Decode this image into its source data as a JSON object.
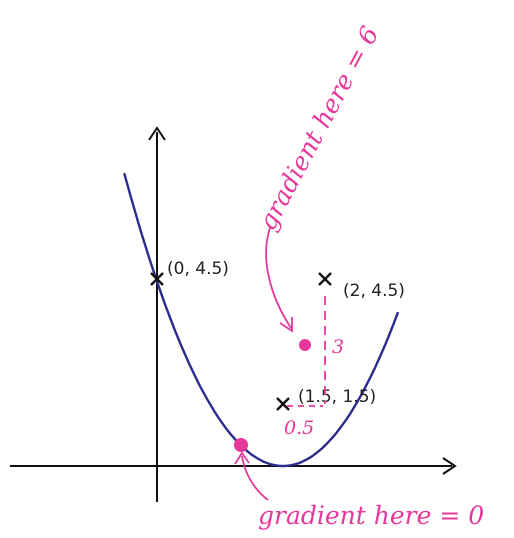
{
  "points": [
    {
      "label": "(0, 4.5)"
    },
    {
      "label": "(2, 4.5)"
    },
    {
      "label": "(1.5, 1.5)"
    }
  ],
  "annotations": {
    "gradient_six": "gradient here = 6",
    "gradient_zero": "gradient here = 0",
    "rise": "3",
    "run": "0.5"
  },
  "colors": {
    "curve": "#2b2c8c",
    "axes": "#111111",
    "annotation": "#e6379a"
  }
}
